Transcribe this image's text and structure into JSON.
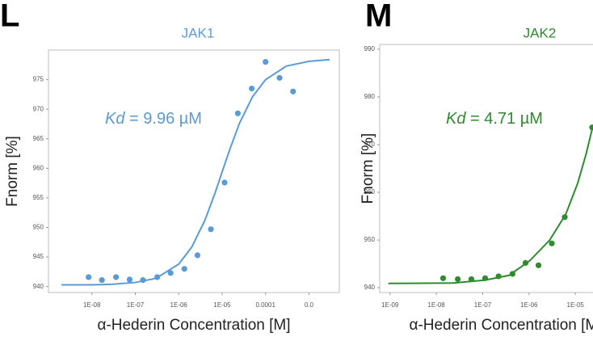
{
  "chart_data": [
    {
      "type": "scatter",
      "panel": "L",
      "title": "JAK1",
      "color": "#5b9bd5",
      "xlabel": "α-Hederin Concentration [M]",
      "ylabel": "Fnorm [%]",
      "annotation": {
        "symbol": "Kd",
        "text": "= 9.96 µM"
      },
      "x_scale": "log",
      "xlim": [
        1e-09,
        0.005
      ],
      "ylim": [
        939,
        980
      ],
      "xticks": [
        {
          "value": 1e-08,
          "label": "1E-08"
        },
        {
          "value": 1e-07,
          "label": "1E-07"
        },
        {
          "value": 1e-06,
          "label": "1E-06"
        },
        {
          "value": 1e-05,
          "label": "1E-05"
        },
        {
          "value": 0.0001,
          "label": "0.0001"
        },
        {
          "value": 0.001,
          "label": "0.0"
        }
      ],
      "yticks": [
        940,
        945,
        950,
        955,
        960,
        965,
        970,
        975
      ],
      "points": {
        "x": [
          8.4e-09,
          1.7e-08,
          3.6e-08,
          7.4e-08,
          1.5e-07,
          3.2e-07,
          6.5e-07,
          1.35e-06,
          2.7e-06,
          5.5e-06,
          1.14e-05,
          2.3e-05,
          4.8e-05,
          0.0001,
          0.00021,
          0.00043
        ],
        "values": [
          941.6,
          941.1,
          941.6,
          941.2,
          941.1,
          941.6,
          942.3,
          943.0,
          945.3,
          949.7,
          957.6,
          969.3,
          973.5,
          978.0,
          975.3,
          973.0
        ]
      },
      "fit": {
        "x": [
          2e-09,
          1e-08,
          3e-08,
          1e-07,
          3e-07,
          1e-06,
          2e-06,
          4e-06,
          7e-06,
          1e-05,
          1.5e-05,
          2.5e-05,
          5e-05,
          0.0001,
          0.0003,
          0.001,
          0.003
        ],
        "values": [
          940.3,
          940.3,
          940.4,
          940.7,
          941.4,
          943.8,
          946.7,
          951.2,
          956.0,
          959.4,
          963.2,
          967.6,
          972.1,
          975.0,
          977.3,
          978.1,
          978.4
        ]
      }
    },
    {
      "type": "scatter",
      "panel": "M",
      "title": "JAK2",
      "color": "#2e8b2e",
      "xlabel": "α-Hederin Concentration [M]",
      "ylabel": "Fnorm [%]",
      "annotation": {
        "symbol": "Kd",
        "text": "= 4.71 µM"
      },
      "x_scale": "log",
      "xlim": [
        6e-10,
        2.4e-05
      ],
      "ylim": [
        939,
        991
      ],
      "xticks": [
        {
          "value": 1e-09,
          "label": "1E-09"
        },
        {
          "value": 1e-08,
          "label": "1E-08"
        },
        {
          "value": 1e-07,
          "label": "1E-07"
        },
        {
          "value": 1e-06,
          "label": "1E-06"
        },
        {
          "value": 1e-05,
          "label": "1E-05"
        }
      ],
      "yticks": [
        940,
        950,
        960,
        970,
        980,
        990
      ],
      "points": {
        "x": [
          1.4e-08,
          2.9e-08,
          5.7e-08,
          1.13e-07,
          2.2e-07,
          4.4e-07,
          8.4e-07,
          1.6e-06,
          3.1e-06,
          5.9e-06,
          2.3e-05
        ],
        "values": [
          942.0,
          941.8,
          941.8,
          942.0,
          942.4,
          942.9,
          945.2,
          944.7,
          949.3,
          954.8,
          973.6
        ]
      },
      "fit": {
        "x": [
          9.2e-10,
          2.3e-08,
          1.13e-07,
          3.7e-07,
          1.02e-06,
          2.8e-06,
          6.2e-06,
          1.13e-05,
          1.7e-05,
          2.4e-05
        ],
        "values": [
          940.9,
          941.0,
          941.6,
          942.6,
          945.6,
          950.0,
          955.4,
          962.0,
          968.0,
          974.0
        ]
      }
    }
  ]
}
